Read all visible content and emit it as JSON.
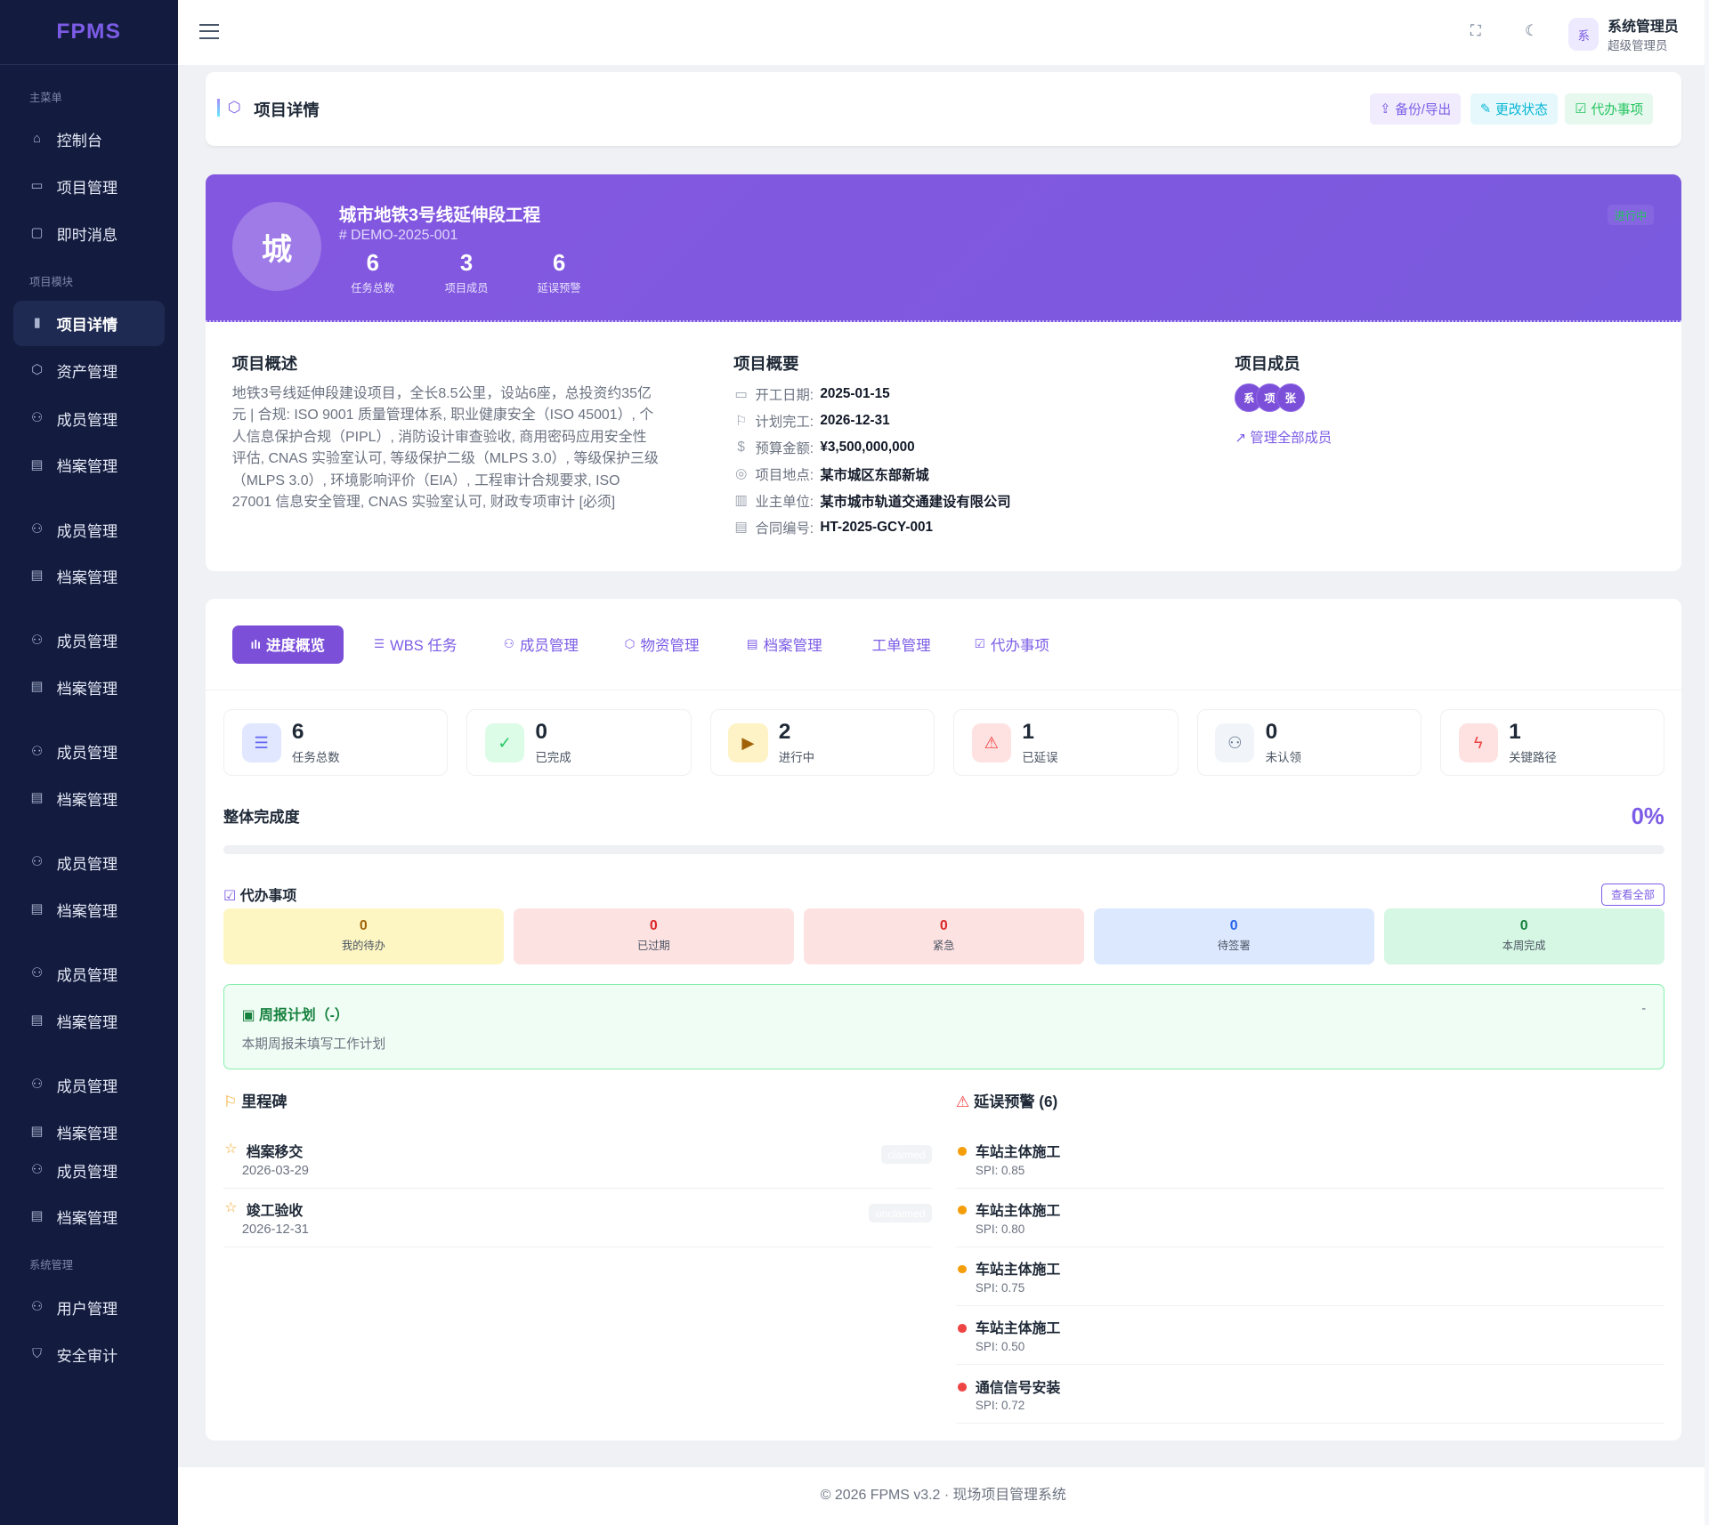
{
  "app": {
    "logo": "FPMS"
  },
  "sidebar": {
    "sections": [
      "主菜单",
      "项目模块",
      "系统管理"
    ],
    "items": [
      {
        "label": "控制台",
        "icon": "home-icon"
      },
      {
        "label": "项目管理",
        "icon": "folder-icon"
      },
      {
        "label": "即时消息",
        "icon": "message-icon"
      },
      {
        "label": "项目详情",
        "icon": "clipboard-icon",
        "active": true
      },
      {
        "label": "资产管理",
        "icon": "box-icon"
      },
      {
        "label": "成员管理",
        "icon": "users-icon"
      },
      {
        "label": "档案管理",
        "icon": "file-icon"
      },
      {
        "label": "成员管理"
      },
      {
        "label": "档案管理"
      },
      {
        "label": "成员管理"
      },
      {
        "label": "档案管理"
      },
      {
        "label": "成员管理"
      },
      {
        "label": "档案管理"
      },
      {
        "label": "成员管理"
      },
      {
        "label": "档案管理"
      },
      {
        "label": "成员管理"
      },
      {
        "label": "档案管理"
      },
      {
        "label": "成员管理"
      },
      {
        "label": "档案管理"
      },
      {
        "label": "成员管理"
      },
      {
        "label": "档案管理"
      },
      {
        "label": "用户管理",
        "icon": "user-plus-icon"
      },
      {
        "label": "安全审计",
        "icon": "shield-icon"
      }
    ]
  },
  "topbar": {
    "user_avatar": "系",
    "user_name": "系统管理员",
    "user_role": "超级管理员"
  },
  "header": {
    "title": "项目详情",
    "buttons": [
      "备份/导出",
      "更改状态",
      "代办事项"
    ]
  },
  "hero": {
    "avatar": "城",
    "name": "城市地铁3号线延伸段工程",
    "code": "# DEMO-2025-001",
    "status": "进行中",
    "stats": [
      {
        "value": "6",
        "label": "任务总数"
      },
      {
        "value": "3",
        "label": "项目成员"
      },
      {
        "value": "6",
        "label": "延误预警"
      }
    ]
  },
  "info": {
    "desc_title": "项目概述",
    "desc": "地铁3号线延伸段建设项目，全长8.5公里，设站6座，总投资约35亿元 | 合规: ISO 9001 质量管理体系, 职业健康安全（ISO 45001）, 个人信息保护合规（PIPL）, 消防设计审查验收, 商用密码应用安全性评估, CNAS 实验室认可, 等级保护二级（MLPS 3.0）, 等级保护三级（MLPS 3.0）, 环境影响评价（EIA）, 工程审计合规要求, ISO 27001 信息安全管理, CNAS 实验室认可, 财政专项审计 [必须]",
    "summary_title": "项目概要",
    "summary": [
      {
        "k": "开工日期:",
        "v": "2025-01-15"
      },
      {
        "k": "计划完工:",
        "v": "2026-12-31"
      },
      {
        "k": "预算金额:",
        "v": "¥3,500,000,000"
      },
      {
        "k": "项目地点:",
        "v": "某市城区东部新城"
      },
      {
        "k": "业主单位:",
        "v": "某市城市轨道交通建设有限公司"
      },
      {
        "k": "合同编号:",
        "v": "HT-2025-GCY-001"
      }
    ],
    "members_title": "项目成员",
    "members": [
      "系",
      "项",
      "张"
    ],
    "manage_link": "管理全部成员"
  },
  "tabs": [
    "进度概览",
    "WBS 任务",
    "成员管理",
    "物资管理",
    "档案管理",
    "工单管理",
    "代办事项"
  ],
  "stats": [
    {
      "value": "6",
      "label": "任务总数"
    },
    {
      "value": "0",
      "label": "已完成"
    },
    {
      "value": "2",
      "label": "进行中"
    },
    {
      "value": "1",
      "label": "已延误"
    },
    {
      "value": "0",
      "label": "未认领"
    },
    {
      "value": "1",
      "label": "关键路径"
    }
  ],
  "progress": {
    "label": "整体完成度",
    "percent_text": "0%",
    "value": 0
  },
  "todo": {
    "title": "代办事项",
    "view_all": "查看全部",
    "items": [
      {
        "value": "0",
        "label": "我的待办"
      },
      {
        "value": "0",
        "label": "已过期"
      },
      {
        "value": "0",
        "label": "紧急"
      },
      {
        "value": "0",
        "label": "待签署"
      },
      {
        "value": "0",
        "label": "本周完成"
      }
    ]
  },
  "weekly": {
    "title": "周报计划（-）",
    "text": "本期周报未填写工作计划",
    "right": "-"
  },
  "milestones": {
    "title": "里程碑",
    "items": [
      {
        "name": "档案移交",
        "date": "2026-03-29",
        "badge": "claimed"
      },
      {
        "name": "竣工验收",
        "date": "2026-12-31",
        "badge": "unclaimed"
      }
    ]
  },
  "delays": {
    "title": "延误预警 (6)",
    "items": [
      {
        "name": "车站主体施工",
        "spi": "SPI: 0.85",
        "color": "#f59e0b"
      },
      {
        "name": "车站主体施工",
        "spi": "SPI: 0.80",
        "color": "#f59e0b"
      },
      {
        "name": "车站主体施工",
        "spi": "SPI: 0.75",
        "color": "#f59e0b"
      },
      {
        "name": "车站主体施工",
        "spi": "SPI: 0.50",
        "color": "#ef4444"
      },
      {
        "name": "通信信号安装",
        "spi": "SPI: 0.72",
        "color": "#ef4444"
      }
    ]
  },
  "footer": "© 2026 FPMS v3.2 · 现场项目管理系统"
}
